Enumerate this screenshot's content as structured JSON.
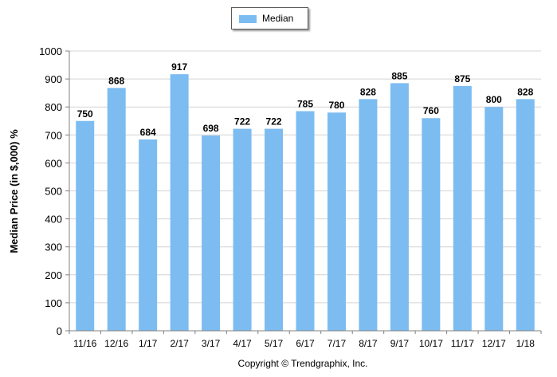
{
  "chart_data": {
    "type": "bar",
    "ylabel": "Median Price (in $,000) %",
    "ylim": [
      0,
      1000
    ],
    "yticks": [
      0,
      100,
      200,
      300,
      400,
      500,
      600,
      700,
      800,
      900,
      1000
    ],
    "grid": true,
    "legend_position": "top-center",
    "series": [
      {
        "name": "Median",
        "color": "#7cbcf1",
        "values": [
          750,
          868,
          684,
          917,
          698,
          722,
          722,
          785,
          780,
          828,
          885,
          760,
          875,
          800,
          828
        ]
      }
    ],
    "categories": [
      "11/16",
      "12/16",
      "1/17",
      "2/17",
      "3/17",
      "4/17",
      "5/17",
      "6/17",
      "7/17",
      "8/17",
      "9/17",
      "10/17",
      "11/17",
      "12/17",
      "1/18"
    ]
  },
  "footer": {
    "copyright": "Copyright © Trendgraphix, Inc."
  }
}
